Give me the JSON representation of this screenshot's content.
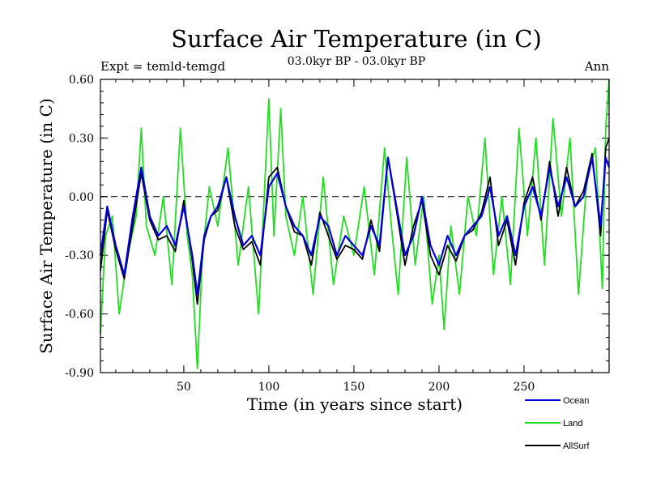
{
  "chart_data": {
    "type": "line",
    "title": "Surface Air Temperature (in C)",
    "subtitle": "03.0kyr BP - 03.0kyr BP",
    "left_label": "Expt = temld-temgd",
    "right_label": "Ann",
    "xlabel": "Time (in years since start)",
    "ylabel": "Surface Air Temperature (in C)",
    "xlim": [
      1,
      300
    ],
    "ylim": [
      -0.9,
      0.6
    ],
    "x_ticks": [
      50,
      100,
      150,
      200,
      250
    ],
    "x_tick_labels": [
      "50",
      "100",
      "150",
      "200",
      "250"
    ],
    "y_ticks": [
      -0.9,
      -0.6,
      -0.3,
      0.0,
      0.3,
      0.6
    ],
    "y_tick_labels": [
      "-0.90",
      "-0.60",
      "-0.30",
      "0.00",
      "0.30",
      "0.60"
    ],
    "zero_line": 0.0,
    "legend_position": "bottom-right",
    "series": [
      {
        "name": "Ocean",
        "color": "#0000dd",
        "x": [
          1,
          5,
          10,
          15,
          20,
          25,
          30,
          35,
          40,
          45,
          50,
          55,
          58,
          62,
          66,
          70,
          75,
          80,
          85,
          90,
          95,
          100,
          105,
          110,
          115,
          120,
          125,
          130,
          135,
          140,
          145,
          150,
          155,
          160,
          165,
          170,
          175,
          180,
          185,
          190,
          195,
          200,
          205,
          210,
          215,
          220,
          225,
          230,
          235,
          240,
          245,
          250,
          255,
          260,
          265,
          270,
          275,
          280,
          285,
          290,
          295,
          298,
          300
        ],
        "values": [
          -0.3,
          -0.05,
          -0.25,
          -0.4,
          -0.1,
          0.15,
          -0.1,
          -0.2,
          -0.15,
          -0.25,
          -0.05,
          -0.3,
          -0.5,
          -0.2,
          -0.1,
          -0.05,
          0.1,
          -0.1,
          -0.25,
          -0.2,
          -0.3,
          0.05,
          0.12,
          -0.05,
          -0.15,
          -0.2,
          -0.3,
          -0.1,
          -0.15,
          -0.3,
          -0.2,
          -0.25,
          -0.3,
          -0.15,
          -0.25,
          0.2,
          -0.05,
          -0.3,
          -0.2,
          0.0,
          -0.25,
          -0.35,
          -0.2,
          -0.3,
          -0.2,
          -0.15,
          -0.1,
          0.05,
          -0.2,
          -0.1,
          -0.3,
          -0.05,
          0.05,
          -0.1,
          0.15,
          -0.05,
          0.1,
          -0.05,
          0.0,
          0.2,
          -0.15,
          0.2,
          0.15
        ]
      },
      {
        "name": "Land",
        "color": "#22dd22",
        "x": [
          1,
          4,
          8,
          12,
          17,
          22,
          25,
          28,
          33,
          38,
          43,
          48,
          52,
          55,
          58,
          61,
          65,
          70,
          76,
          82,
          88,
          94,
          100,
          103,
          107,
          110,
          115,
          120,
          126,
          132,
          138,
          144,
          150,
          156,
          162,
          168,
          172,
          176,
          181,
          186,
          191,
          196,
          200,
          203,
          207,
          212,
          217,
          222,
          227,
          232,
          237,
          242,
          247,
          252,
          257,
          262,
          267,
          272,
          277,
          282,
          287,
          292,
          296,
          298,
          300
        ],
        "values": [
          -0.7,
          -0.2,
          -0.1,
          -0.6,
          -0.3,
          -0.1,
          0.35,
          -0.15,
          -0.3,
          0.0,
          -0.45,
          0.35,
          -0.2,
          -0.4,
          -0.88,
          -0.3,
          0.05,
          -0.15,
          0.25,
          -0.35,
          0.05,
          -0.6,
          0.5,
          -0.2,
          0.45,
          -0.1,
          -0.3,
          0.0,
          -0.5,
          0.1,
          -0.45,
          -0.1,
          -0.3,
          0.05,
          -0.4,
          0.25,
          -0.15,
          -0.5,
          0.2,
          -0.35,
          0.0,
          -0.55,
          -0.3,
          -0.68,
          -0.15,
          -0.5,
          0.0,
          -0.2,
          0.3,
          -0.4,
          0.0,
          -0.45,
          0.35,
          -0.2,
          0.3,
          -0.35,
          0.4,
          -0.1,
          0.3,
          -0.5,
          0.1,
          0.25,
          -0.47,
          0.35,
          0.6
        ]
      },
      {
        "name": "AllSurf",
        "color": "#000000",
        "x": [
          1,
          5,
          10,
          15,
          20,
          25,
          30,
          35,
          40,
          45,
          50,
          55,
          58,
          62,
          66,
          70,
          75,
          80,
          85,
          90,
          95,
          100,
          105,
          110,
          115,
          120,
          125,
          130,
          135,
          140,
          145,
          150,
          155,
          160,
          165,
          170,
          175,
          180,
          185,
          190,
          195,
          200,
          205,
          210,
          215,
          220,
          225,
          230,
          235,
          240,
          245,
          250,
          255,
          260,
          265,
          270,
          275,
          280,
          285,
          290,
          295,
          298,
          300
        ],
        "values": [
          -0.38,
          -0.07,
          -0.27,
          -0.42,
          -0.15,
          0.12,
          -0.12,
          -0.22,
          -0.2,
          -0.28,
          -0.02,
          -0.33,
          -0.55,
          -0.22,
          -0.1,
          -0.07,
          0.1,
          -0.15,
          -0.27,
          -0.23,
          -0.35,
          0.1,
          0.15,
          -0.05,
          -0.18,
          -0.2,
          -0.35,
          -0.08,
          -0.2,
          -0.32,
          -0.25,
          -0.27,
          -0.32,
          -0.12,
          -0.28,
          0.2,
          -0.07,
          -0.35,
          -0.15,
          -0.02,
          -0.3,
          -0.4,
          -0.25,
          -0.33,
          -0.2,
          -0.17,
          -0.08,
          0.1,
          -0.25,
          -0.12,
          -0.35,
          -0.03,
          0.1,
          -0.12,
          0.18,
          -0.1,
          0.15,
          -0.05,
          0.03,
          0.22,
          -0.2,
          0.25,
          0.3
        ]
      }
    ]
  }
}
